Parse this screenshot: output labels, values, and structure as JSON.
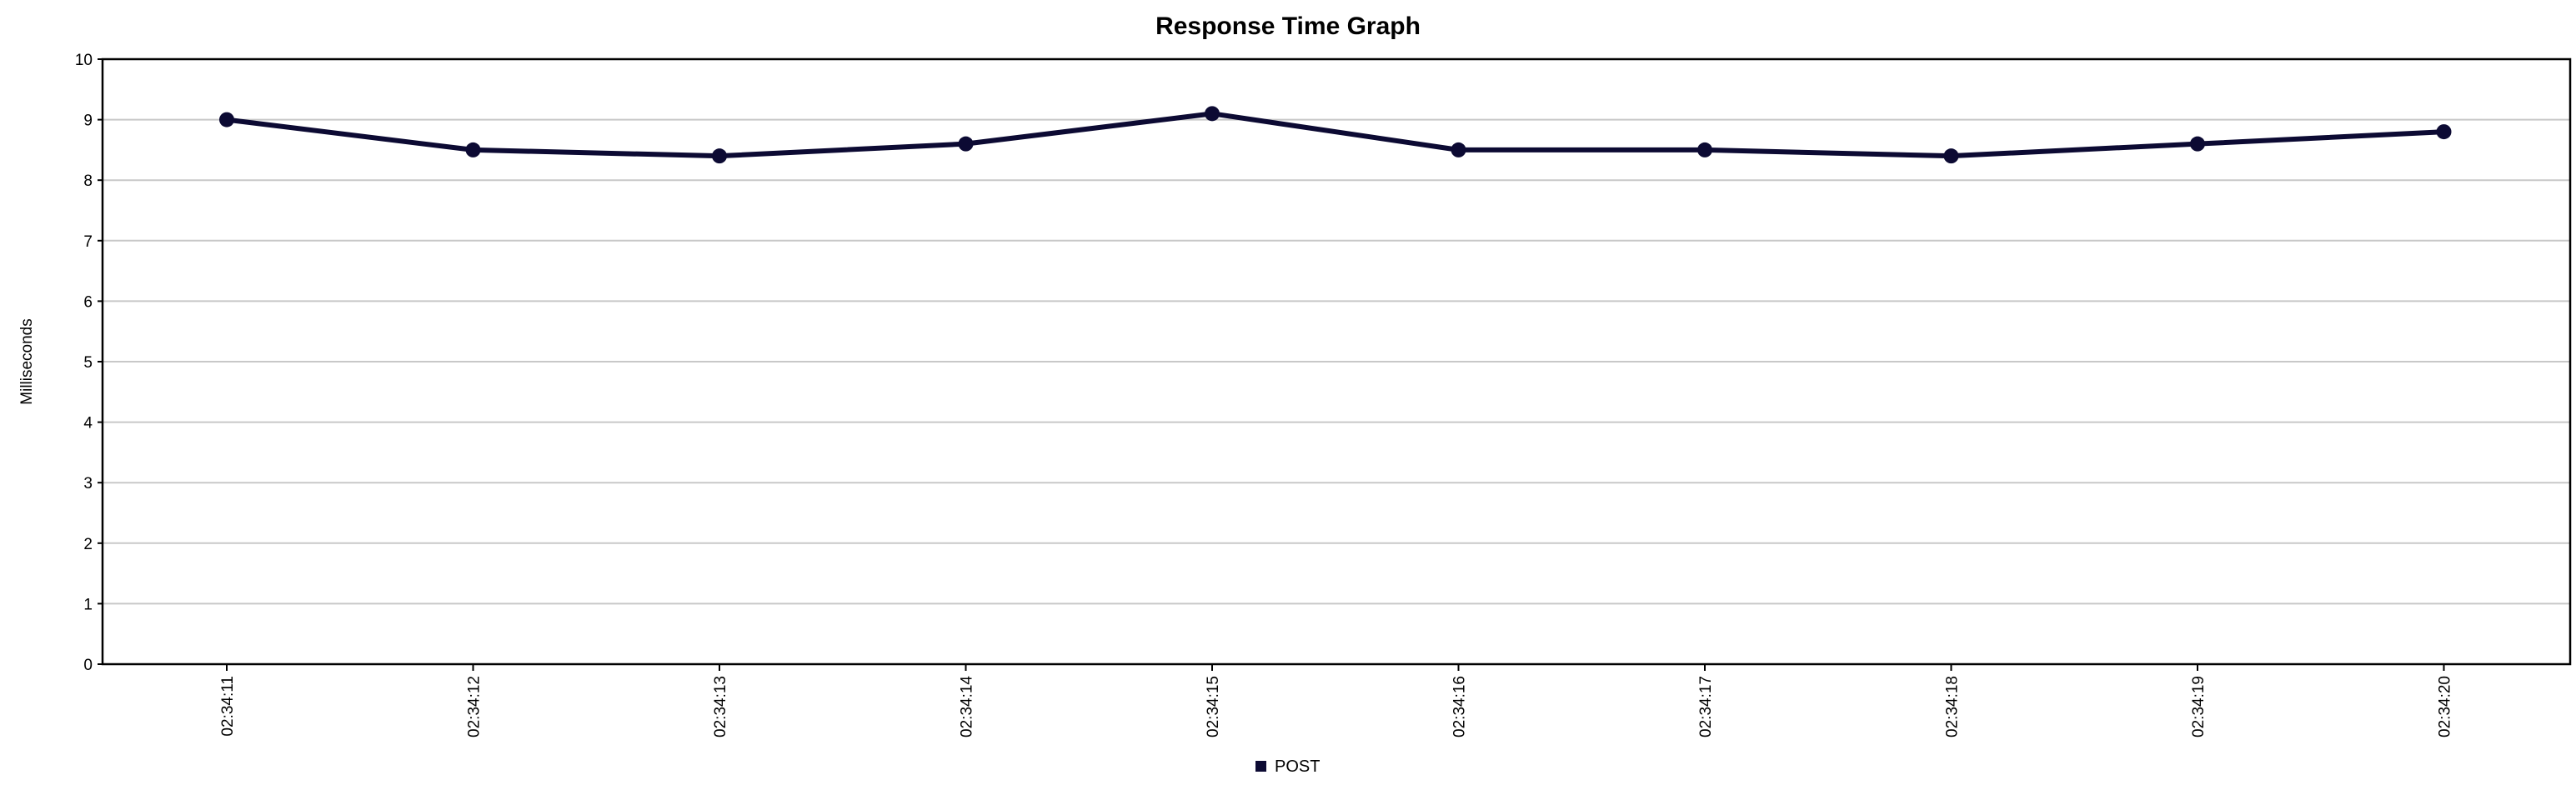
{
  "chart_data": {
    "type": "line",
    "title": "Response Time Graph",
    "xlabel": "",
    "ylabel": "Milliseconds",
    "categories": [
      "02:34:11",
      "02:34:12",
      "02:34:13",
      "02:34:14",
      "02:34:15",
      "02:34:16",
      "02:34:17",
      "02:34:18",
      "02:34:19",
      "02:34:20"
    ],
    "series": [
      {
        "name": "POST",
        "values": [
          9.0,
          8.5,
          8.4,
          8.6,
          9.1,
          8.5,
          8.5,
          8.4,
          8.6,
          8.8
        ],
        "color": "#0c0a33"
      }
    ],
    "ylim": [
      0,
      10
    ],
    "yticks": [
      0,
      1,
      2,
      3,
      4,
      5,
      6,
      7,
      8,
      9,
      10
    ],
    "grid": true,
    "legend_position": "bottom-center",
    "colors": {
      "line": "#0c0a33",
      "grid": "#c8c8c8",
      "axis": "#000000"
    }
  }
}
